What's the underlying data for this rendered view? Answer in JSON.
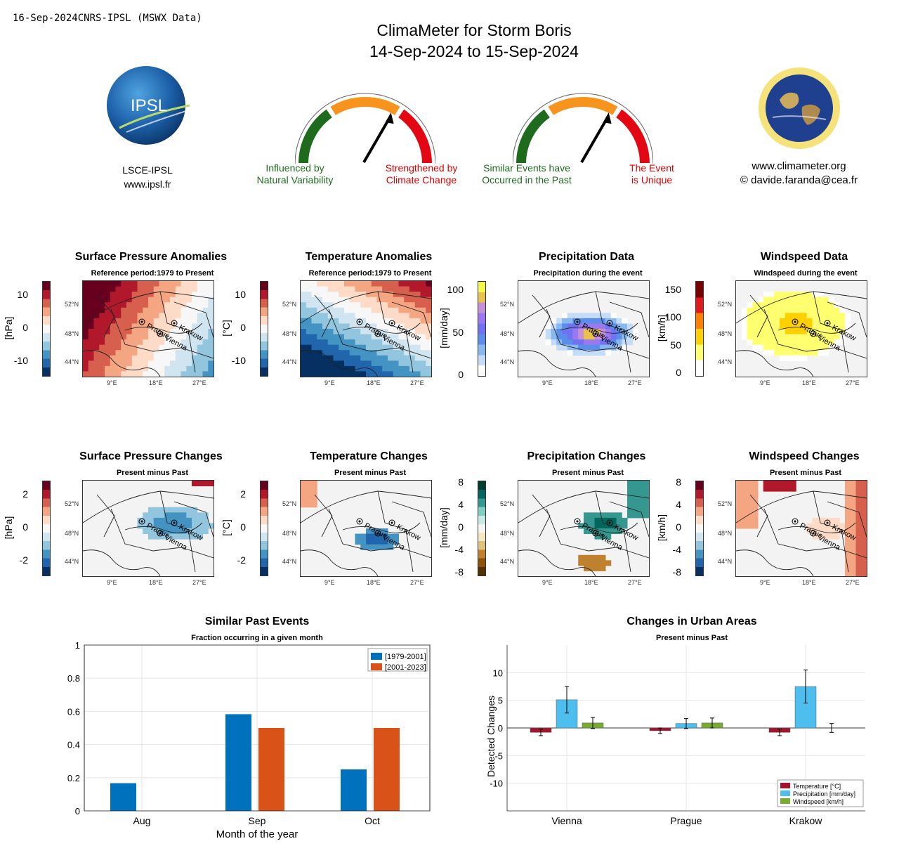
{
  "header": {
    "stamp": "16-Sep-2024CNRS-IPSL (MSWX Data)",
    "title_line1": "ClimaMeter for  Storm Boris",
    "title_line2": "14-Sep-2024 to 15-Sep-2024"
  },
  "left_logo": {
    "text": "IPSL",
    "caption1": "LSCE-IPSL",
    "caption2": "www.ipsl.fr"
  },
  "gauges": [
    {
      "left_label1": "Influenced by",
      "left_label2": "Natural Variability",
      "right_label1": "Strengthened by",
      "right_label2": "Climate Change"
    },
    {
      "left_label1": "Similar Events have",
      "left_label2": "Occurred in the Past",
      "right_label1": "The Event",
      "right_label2": "is Unique"
    }
  ],
  "right_logo": {
    "caption1": "www.climameter.org",
    "caption2": "© davide.faranda@cea.fr"
  },
  "colors": {
    "gauge_green": "#1e6b1e",
    "gauge_orange": "#f7941d",
    "gauge_red": "#e30613",
    "series1": "#0072bd",
    "series2": "#d95319",
    "temp": "#a2142f",
    "precip": "#4dbeee",
    "wind": "#77ac30"
  },
  "map_axes": {
    "lat_ticks": [
      "52°N",
      "48°N",
      "44°N"
    ],
    "lon_ticks": [
      "9°E",
      "18°E",
      "27°E"
    ],
    "cities": [
      "Prague",
      "Vienna",
      "Krakow"
    ]
  },
  "panels_row1": [
    {
      "title": "Surface Pressure Anomalies",
      "subtitle": "Reference period:1979 to Present",
      "unit": "[hPa]",
      "ticks": [
        "10",
        "0",
        "-10"
      ],
      "palette": "diverging"
    },
    {
      "title": "Temperature Anomalies",
      "subtitle": "Reference period:1979 to Present",
      "unit": "[°C]",
      "ticks": [
        "10",
        "0",
        "-10"
      ],
      "palette": "diverging"
    },
    {
      "title": "Precipitation Data",
      "subtitle": "Precipitation during the event",
      "unit": "[mm/day]",
      "ticks": [
        "100",
        "50",
        "0"
      ],
      "palette": "precip"
    },
    {
      "title": "Windspeed Data",
      "subtitle": "Windspeed during the event",
      "unit": "[km/h]",
      "ticks": [
        "150",
        "100",
        "50",
        "0"
      ],
      "palette": "wind"
    }
  ],
  "panels_row2": [
    {
      "title": "Surface Pressure Changes",
      "subtitle": "Present minus Past",
      "unit": "[hPa]",
      "ticks": [
        "2",
        "0",
        "-2"
      ],
      "palette": "diverging"
    },
    {
      "title": "Temperature Changes",
      "subtitle": "Present minus Past",
      "unit": "[°C]",
      "ticks": [
        "2",
        "0",
        "-2"
      ],
      "palette": "diverging"
    },
    {
      "title": "Precipitation Changes",
      "subtitle": "Present minus Past",
      "unit": "[mm/day]",
      "ticks": [
        "8",
        "4",
        "0",
        "-4",
        "-8"
      ],
      "palette": "brbg"
    },
    {
      "title": "Windspeed Changes",
      "subtitle": "Present minus Past",
      "unit": "[km/h]",
      "ticks": [
        "8",
        "4",
        "0",
        "-4",
        "-8"
      ],
      "palette": "diverging"
    }
  ],
  "chart_data": [
    {
      "type": "bar",
      "title": "Similar Past Events",
      "subtitle": "Fraction occurring in a given month",
      "xlabel": "Month of the year",
      "ylabel": "",
      "categories": [
        "Aug",
        "Sep",
        "Oct"
      ],
      "series": [
        {
          "name": "[1979-2001]",
          "values": [
            0.167,
            0.583,
            0.25
          ]
        },
        {
          "name": "[2001-2023]",
          "values": [
            0,
            0.5,
            0.5
          ]
        }
      ],
      "ylim": [
        0,
        1
      ],
      "yticks": [
        "0",
        "0.2",
        "0.4",
        "0.6",
        "0.8",
        "1"
      ],
      "grid": true,
      "legend": "top-right"
    },
    {
      "type": "bar",
      "title": "Changes in Urban Areas",
      "subtitle": "Present minus Past",
      "xlabel": "",
      "ylabel": "Detected Changes",
      "categories": [
        "Vienna",
        "Prague",
        "Krakow"
      ],
      "series": [
        {
          "name": "Temperature [°C]",
          "values": [
            -0.8,
            -0.5,
            -0.8
          ],
          "err": [
            0.6,
            0.5,
            0.6
          ]
        },
        {
          "name": "Precipitation [mm/day]",
          "values": [
            5.1,
            0.8,
            7.5
          ],
          "err": [
            2.4,
            0.9,
            3.0
          ]
        },
        {
          "name": "Windspeed [km/h]",
          "values": [
            0.9,
            0.9,
            0.0
          ],
          "err": [
            1.0,
            0.9,
            0.8
          ]
        }
      ],
      "ylim": [
        -15,
        15
      ],
      "yticks": [
        "10",
        "5",
        "0",
        "-5",
        "-10"
      ],
      "grid": true,
      "legend": "bottom-right"
    }
  ]
}
